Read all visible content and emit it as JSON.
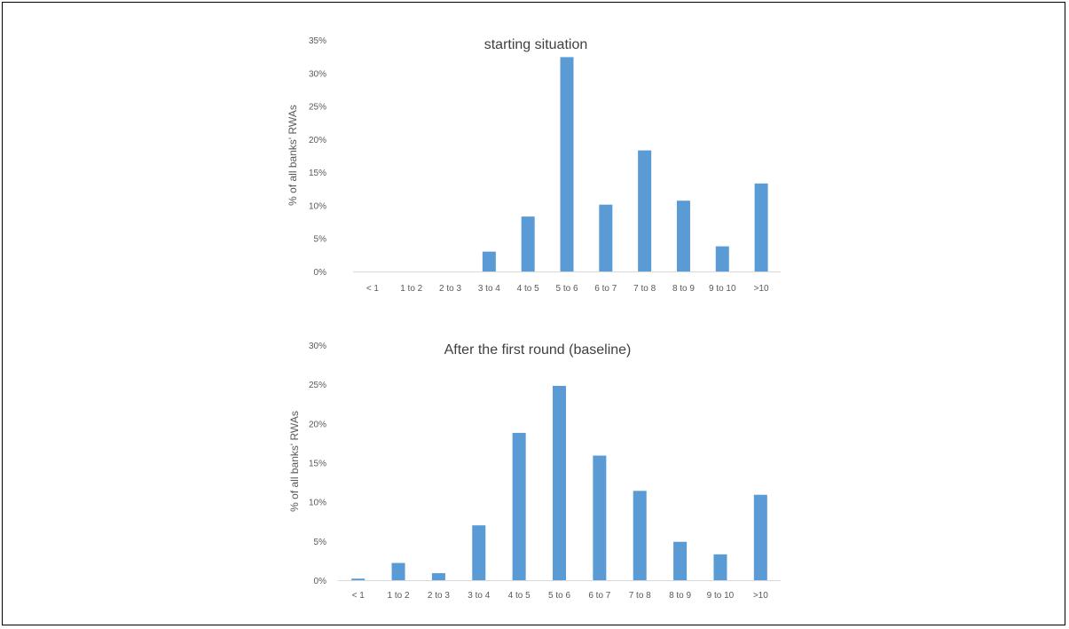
{
  "chart_data": [
    {
      "type": "bar",
      "title": "starting situation",
      "xlabel": "",
      "ylabel": "% of all banks' RWAs",
      "categories": [
        "< 1",
        "1 to 2",
        "2 to 3",
        "3 to 4",
        "4 to 5",
        "5 to 6",
        "6 to 7",
        "7 to 8",
        "8 to 9",
        "9 to 10",
        ">10"
      ],
      "values": [
        0,
        0,
        0,
        3.0,
        8.3,
        32.4,
        10.1,
        18.3,
        10.7,
        3.8,
        13.3
      ],
      "ylim": [
        0,
        35
      ],
      "yticks": [
        "0%",
        "5%",
        "10%",
        "15%",
        "20%",
        "25%",
        "30%",
        "35%"
      ],
      "color": "#5b9bd5",
      "grid": false,
      "legend": false
    },
    {
      "type": "bar",
      "title": "After the first round (baseline)",
      "xlabel": "",
      "ylabel": "% of all banks' RWAs",
      "categories": [
        "< 1",
        "1 to 2",
        "2 to 3",
        "3 to 4",
        "4 to 5",
        "5 to 6",
        "6 to 7",
        "7 to 8",
        "8 to 9",
        "9 to 10",
        ">10"
      ],
      "values": [
        0.2,
        2.2,
        0.9,
        7.0,
        18.8,
        24.8,
        15.9,
        11.4,
        4.9,
        3.3,
        10.9
      ],
      "ylim": [
        0,
        30
      ],
      "yticks": [
        "0%",
        "5%",
        "10%",
        "15%",
        "20%",
        "25%",
        "30%"
      ],
      "color": "#5b9bd5",
      "grid": false,
      "legend": false
    }
  ]
}
